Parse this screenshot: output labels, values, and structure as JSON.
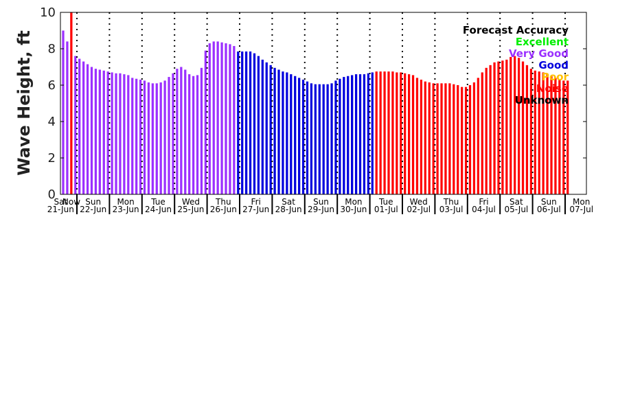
{
  "chart_data": {
    "type": "bar",
    "ylabel": "Wave Height, ft",
    "ylim": [
      0,
      10
    ],
    "yticks": [
      0,
      2,
      4,
      6,
      8,
      10
    ],
    "bars_per_day": 8,
    "days": [
      {
        "dow": "Sat",
        "date": "21-Jun",
        "dow_color": "#ff0000"
      },
      {
        "dow": "Sun",
        "date": "22-Jun"
      },
      {
        "dow": "Mon",
        "date": "23-Jun"
      },
      {
        "dow": "Tue",
        "date": "24-Jun"
      },
      {
        "dow": "Wed",
        "date": "25-Jun"
      },
      {
        "dow": "Thu",
        "date": "26-Jun"
      },
      {
        "dow": "Fri",
        "date": "27-Jun"
      },
      {
        "dow": "Sat",
        "date": "28-Jun"
      },
      {
        "dow": "Sun",
        "date": "29-Jun"
      },
      {
        "dow": "Mon",
        "date": "30-Jun"
      },
      {
        "dow": "Tue",
        "date": "01-Jul"
      },
      {
        "dow": "Wed",
        "date": "02-Jul"
      },
      {
        "dow": "Thu",
        "date": "03-Jul"
      },
      {
        "dow": "Fri",
        "date": "04-Jul"
      },
      {
        "dow": "Sat",
        "date": "05-Jul"
      },
      {
        "dow": "Sun",
        "date": "06-Jul"
      },
      {
        "dow": "Mon",
        "date": "07-Jul"
      }
    ],
    "now_label": "Now",
    "legend": {
      "title": "Forecast Accuracy",
      "placement": "top-right",
      "entries": [
        {
          "label": "Excellent",
          "color": "#00ee00"
        },
        {
          "label": "Very Good",
          "color": "#9b30ff"
        },
        {
          "label": "Good",
          "color": "#0000dd"
        },
        {
          "label": "Poor",
          "color": "#ffc000"
        },
        {
          "label": "Noise",
          "color": "#ff0000"
        },
        {
          "label": "Unknown",
          "color": "#000000"
        }
      ]
    },
    "series": [
      {
        "color": "#9b30ff",
        "values": [
          9.0,
          8.4
        ]
      },
      {
        "color": "#ff0000",
        "values": [
          10.0
        ]
      },
      {
        "color": "#9b30ff",
        "values": [
          7.6,
          7.45,
          7.3,
          7.15,
          7.0,
          6.9,
          6.85,
          6.8,
          6.75,
          6.7,
          6.65,
          6.65,
          6.6,
          6.55,
          6.4,
          6.35,
          6.3,
          6.25,
          6.15,
          6.1,
          6.1,
          6.15,
          6.25,
          6.45,
          6.65,
          6.9,
          7.0,
          6.85,
          6.6,
          6.5,
          6.55,
          6.95,
          7.9,
          8.3,
          8.4,
          8.4,
          8.35,
          8.3,
          8.25,
          8.15
        ]
      },
      {
        "color": "#0000dd",
        "values": [
          7.85,
          7.85,
          7.85,
          7.85,
          7.75,
          7.6,
          7.4,
          7.25,
          7.1,
          6.95,
          6.85,
          6.75,
          6.7,
          6.6,
          6.5,
          6.4,
          6.3,
          6.2,
          6.1,
          6.05,
          6.05,
          6.05,
          6.05,
          6.1,
          6.25,
          6.35,
          6.45,
          6.5,
          6.55,
          6.6,
          6.6,
          6.6,
          6.65,
          6.7
        ]
      },
      {
        "color": "#ff0000",
        "values": [
          6.75,
          6.75,
          6.75,
          6.75,
          6.75,
          6.7,
          6.7,
          6.65,
          6.6,
          6.55,
          6.4,
          6.3,
          6.2,
          6.15,
          6.1,
          6.1,
          6.1,
          6.1,
          6.1,
          6.05,
          6.0,
          5.9,
          5.9,
          6.0,
          6.15,
          6.4,
          6.7,
          6.95,
          7.1,
          7.25,
          7.3,
          7.35,
          7.4,
          7.55,
          7.6,
          7.5,
          7.3,
          7.1,
          6.9,
          6.8,
          6.75,
          6.7,
          6.6,
          6.5,
          6.4,
          6.3,
          6.25,
          6.25
        ]
      }
    ]
  }
}
